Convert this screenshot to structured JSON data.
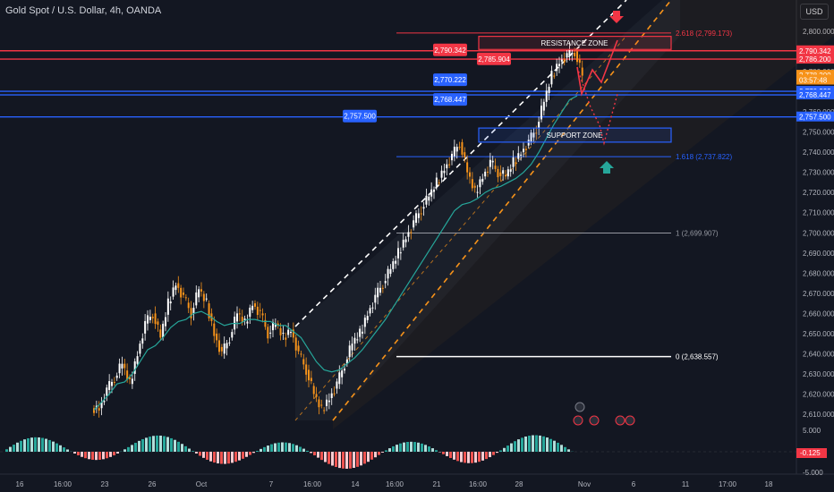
{
  "header": {
    "symbol_title": "Gold Spot / U.S. Dollar, 4h, OANDA",
    "currency": "USD"
  },
  "colors": {
    "background": "#131722",
    "bull": "#ffffff",
    "bear": "#f7931a",
    "red": "#f23645",
    "blue": "#2962ff",
    "ema": "#26a69a",
    "orange_channel": "#f7931a"
  },
  "chart_data": {
    "type": "candlestick",
    "y_axis": {
      "min": 2600,
      "max": 2800,
      "ticks": [
        "2,800.000",
        "2,790.000",
        "2,780.000",
        "2,770.000",
        "2,760.000",
        "2,750.000",
        "2,740.000",
        "2,730.000",
        "2,720.000",
        "2,710.000",
        "2,700.000",
        "2,690.000",
        "2,680.000",
        "2,670.000",
        "2,660.000",
        "2,650.000",
        "2,640.000",
        "2,630.000",
        "2,620.000",
        "2,610.000"
      ]
    },
    "x_axis": {
      "ticks": [
        "16",
        "16:00",
        "23",
        "26",
        "Oct",
        "7",
        "16:00",
        "14",
        "16:00",
        "21",
        "16:00",
        "28",
        "Nov",
        "6",
        "11",
        "17:00",
        "18"
      ]
    },
    "price_badges": [
      {
        "text": "2,790.342",
        "value": 2790.342,
        "color": "red"
      },
      {
        "text": "2,786.200",
        "value": 2786.2,
        "color": "red"
      },
      {
        "text": "2,778.200",
        "value": 2778.2,
        "color": "orange"
      },
      {
        "text": "03:57:48",
        "value": 2775.8,
        "color": "orange"
      },
      {
        "text": "2,770.222",
        "value": 2770.222,
        "color": "blue"
      },
      {
        "text": "2,768.447",
        "value": 2768.447,
        "color": "blue"
      },
      {
        "text": "2,757.500",
        "value": 2757.5,
        "color": "blue"
      }
    ],
    "level_labels": [
      {
        "text": "2,790.342",
        "value": 2790.342,
        "color": "red",
        "at": "left"
      },
      {
        "text": "2,785.904",
        "value": 2785.904,
        "color": "red",
        "at": "mid"
      },
      {
        "text": "2,770.222",
        "value": 2770.222,
        "color": "blue",
        "at": "left"
      },
      {
        "text": "2,768.447",
        "value": 2768.447,
        "color": "blue",
        "at": "left"
      },
      {
        "text": "2,757.500",
        "value": 2757.5,
        "color": "blue",
        "at": "far-left"
      }
    ],
    "zones": [
      {
        "text": "RESISTANCE ZONE",
        "top": 2797.5,
        "bottom": 2791,
        "color": "red"
      },
      {
        "text": "SUPPORT ZONE",
        "top": 2752,
        "bottom": 2745,
        "color": "blue"
      }
    ],
    "fib_levels": [
      {
        "text": "2.618 (2,799.173)",
        "value": 2799.173,
        "color": "red"
      },
      {
        "text": "1.618 (2,737.822)",
        "value": 2737.822,
        "color": "blue"
      },
      {
        "text": "1 (2,699.907)",
        "value": 2699.907,
        "color": "gray"
      },
      {
        "text": "0 (2,638.557)",
        "value": 2638.557,
        "color": "white"
      }
    ],
    "oscillator": {
      "ticks": [
        "5.000",
        "-5.000"
      ],
      "badge": "-0.125"
    },
    "price_path": [
      2613,
      2622,
      2628,
      2635,
      2625,
      2640,
      2655,
      2660,
      2648,
      2665,
      2675,
      2668,
      2660,
      2672,
      2665,
      2650,
      2640,
      2648,
      2660,
      2655,
      2665,
      2660,
      2650,
      2655,
      2648,
      2652,
      2640,
      2632,
      2620,
      2612,
      2618,
      2625,
      2635,
      2645,
      2650,
      2660,
      2668,
      2675,
      2682,
      2690,
      2698,
      2705,
      2712,
      2718,
      2725,
      2732,
      2738,
      2745,
      2730,
      2720,
      2728,
      2735,
      2730,
      2728,
      2735,
      2740,
      2745,
      2752,
      2765,
      2778,
      2785,
      2788,
      2790,
      2778
    ],
    "ema_path": [
      2612,
      2616,
      2620,
      2625,
      2626,
      2630,
      2636,
      2642,
      2644,
      2648,
      2653,
      2656,
      2657,
      2660,
      2661,
      2659,
      2656,
      2654,
      2655,
      2655,
      2657,
      2657,
      2656,
      2656,
      2654,
      2654,
      2651,
      2648,
      2642,
      2636,
      2632,
      2631,
      2632,
      2635,
      2638,
      2642,
      2647,
      2652,
      2657,
      2663,
      2669,
      2675,
      2681,
      2687,
      2693,
      2699,
      2705,
      2711,
      2714,
      2715,
      2717,
      2720,
      2722,
      2723,
      2725,
      2727,
      2730,
      2734,
      2740,
      2747,
      2754,
      2760,
      2766,
      2768
    ]
  }
}
